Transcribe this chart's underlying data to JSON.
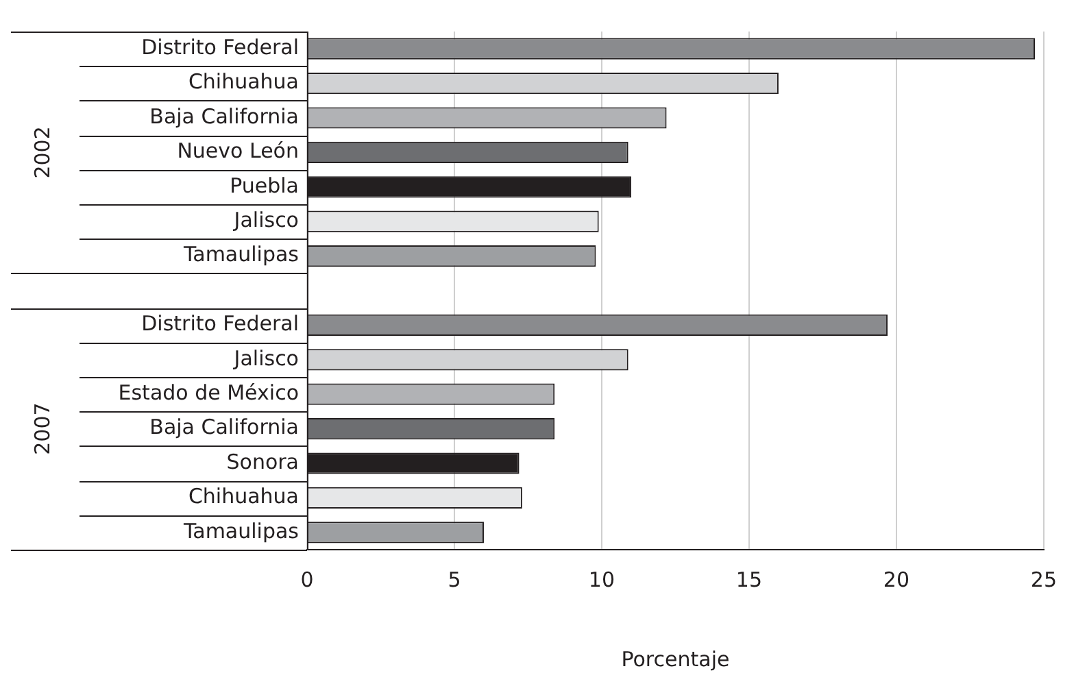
{
  "chart_data": {
    "type": "bar",
    "orientation": "horizontal",
    "xlabel": "Porcentaje",
    "categories": [
      "Distrito Federal",
      "Chihuahua",
      "Baja California",
      "Nuevo León",
      "Puebla",
      "Jalisco",
      "Tamaulipas",
      null,
      "Distrito Federal",
      "Jalisco",
      "Estado de México",
      "Baja California",
      "Sonora",
      "Chihuahua",
      "Tamaulipas"
    ],
    "values": [
      24.7,
      16.0,
      12.2,
      10.9,
      11.0,
      9.9,
      9.8,
      null,
      19.7,
      10.9,
      8.4,
      8.4,
      7.2,
      7.3,
      6.0
    ],
    "colors": [
      "#8a8b8e",
      "#d1d2d4",
      "#b1b2b5",
      "#6d6e71",
      "#231f20",
      "#e6e7e8",
      "#9d9fa2",
      null,
      "#8a8b8e",
      "#d1d2d4",
      "#b1b2b5",
      "#6d6e71",
      "#231f20",
      "#e6e7e8",
      "#9d9fa2"
    ],
    "xlim": [
      0,
      25
    ],
    "xticks": [
      0,
      5,
      10,
      15,
      20,
      25
    ],
    "grid": "x",
    "annotations": [
      "2002",
      "2007"
    ]
  }
}
